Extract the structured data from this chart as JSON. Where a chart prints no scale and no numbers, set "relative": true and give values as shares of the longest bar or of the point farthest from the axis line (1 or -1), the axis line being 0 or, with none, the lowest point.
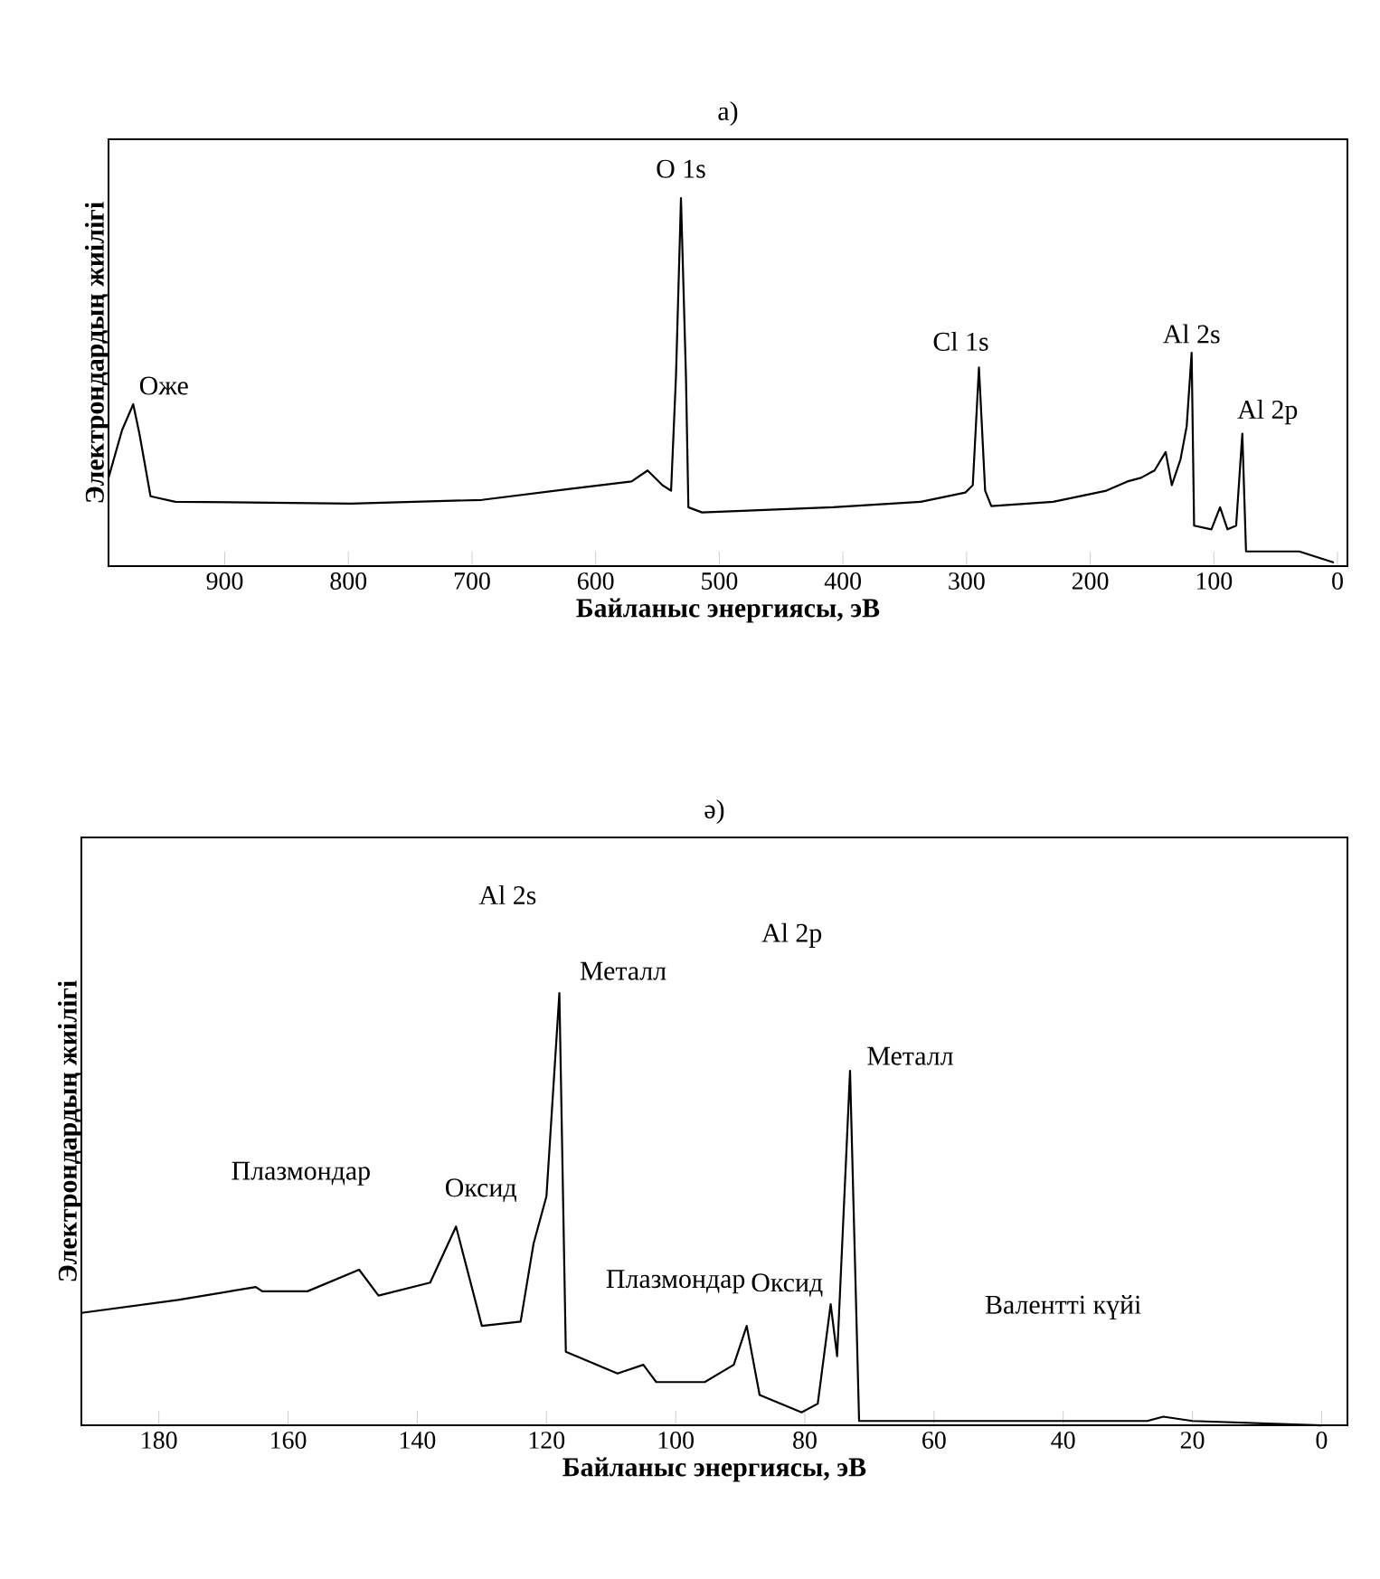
{
  "chart_data": [
    {
      "type": "line",
      "title": "а)",
      "xlabel": "Байланыс энергиясы, эВ",
      "ylabel": "Электрондардың жиілігі",
      "relative": true,
      "xlim": [
        994,
        -8
      ],
      "xticks": [
        900,
        800,
        700,
        600,
        500,
        400,
        300,
        200,
        100,
        0
      ],
      "series": [
        {
          "color": "#000000",
          "x": [
            994,
            983,
            974,
            969,
            960,
            940,
            798,
            692,
            621,
            571,
            558,
            546,
            539,
            535,
            531,
            527,
            525,
            514,
            408,
            337,
            301,
            295,
            290,
            285,
            280,
            230,
            187,
            170,
            159,
            148,
            139,
            134,
            127,
            122,
            118,
            116,
            102,
            95,
            89,
            82,
            77,
            74,
            31,
            3
          ],
          "values": [
            0.24,
            0.37,
            0.44,
            0.36,
            0.19,
            0.175,
            0.17,
            0.18,
            0.21,
            0.23,
            0.26,
            0.22,
            0.205,
            0.52,
            1.0,
            0.52,
            0.16,
            0.146,
            0.16,
            0.175,
            0.2,
            0.22,
            0.54,
            0.205,
            0.163,
            0.175,
            0.205,
            0.23,
            0.24,
            0.26,
            0.31,
            0.22,
            0.29,
            0.38,
            0.58,
            0.11,
            0.1,
            0.16,
            0.1,
            0.11,
            0.36,
            0.04,
            0.04,
            0.01
          ]
        }
      ],
      "annotations": [
        {
          "text": "Оже",
          "x": 974,
          "y": 0.44
        },
        {
          "text": "O 1s",
          "x": 531,
          "y": 1.0
        },
        {
          "text": "Cl 1s",
          "x": 290,
          "y": 0.54
        },
        {
          "text": "Al 2s",
          "x": 118,
          "y": 0.58
        },
        {
          "text": "Al 2p",
          "x": 77,
          "y": 0.36
        }
      ]
    },
    {
      "type": "line",
      "title": "ә)",
      "xlabel": "Байланыс энергиясы, эВ",
      "ylabel": "Электрондардың жиілігі",
      "relative": true,
      "xlim": [
        192,
        -4
      ],
      "xticks": [
        180,
        160,
        140,
        120,
        100,
        80,
        60,
        40,
        20,
        0
      ],
      "series": [
        {
          "color": "#000000",
          "x": [
            192,
            177,
            165,
            164,
            157,
            149,
            146,
            138,
            134,
            130,
            124,
            122,
            120,
            118,
            117,
            109,
            105,
            103,
            95.5,
            91,
            89,
            87,
            80.5,
            78,
            76,
            75,
            73,
            71.6,
            27,
            24.5,
            20,
            0
          ],
          "values": [
            0.26,
            0.29,
            0.32,
            0.31,
            0.31,
            0.36,
            0.3,
            0.33,
            0.46,
            0.23,
            0.24,
            0.42,
            0.53,
            1.0,
            0.17,
            0.12,
            0.14,
            0.1,
            0.1,
            0.14,
            0.23,
            0.07,
            0.03,
            0.05,
            0.28,
            0.16,
            0.82,
            0.01,
            0.01,
            0.02,
            0.01,
            0.0
          ]
        }
      ],
      "annotations": [
        "Al 2s",
        {
          "text": "Металл",
          "x": 118,
          "y": 1.0
        },
        "Al 2p",
        {
          "text": "Металл",
          "x": 73,
          "y": 0.82
        },
        {
          "text": "Оксид",
          "x": 122,
          "y": 0.42
        },
        {
          "text": "Оксид",
          "x": 76,
          "y": 0.28
        },
        "Плазмондар",
        "Плазмондар",
        "Валентті күйі"
      ]
    }
  ]
}
